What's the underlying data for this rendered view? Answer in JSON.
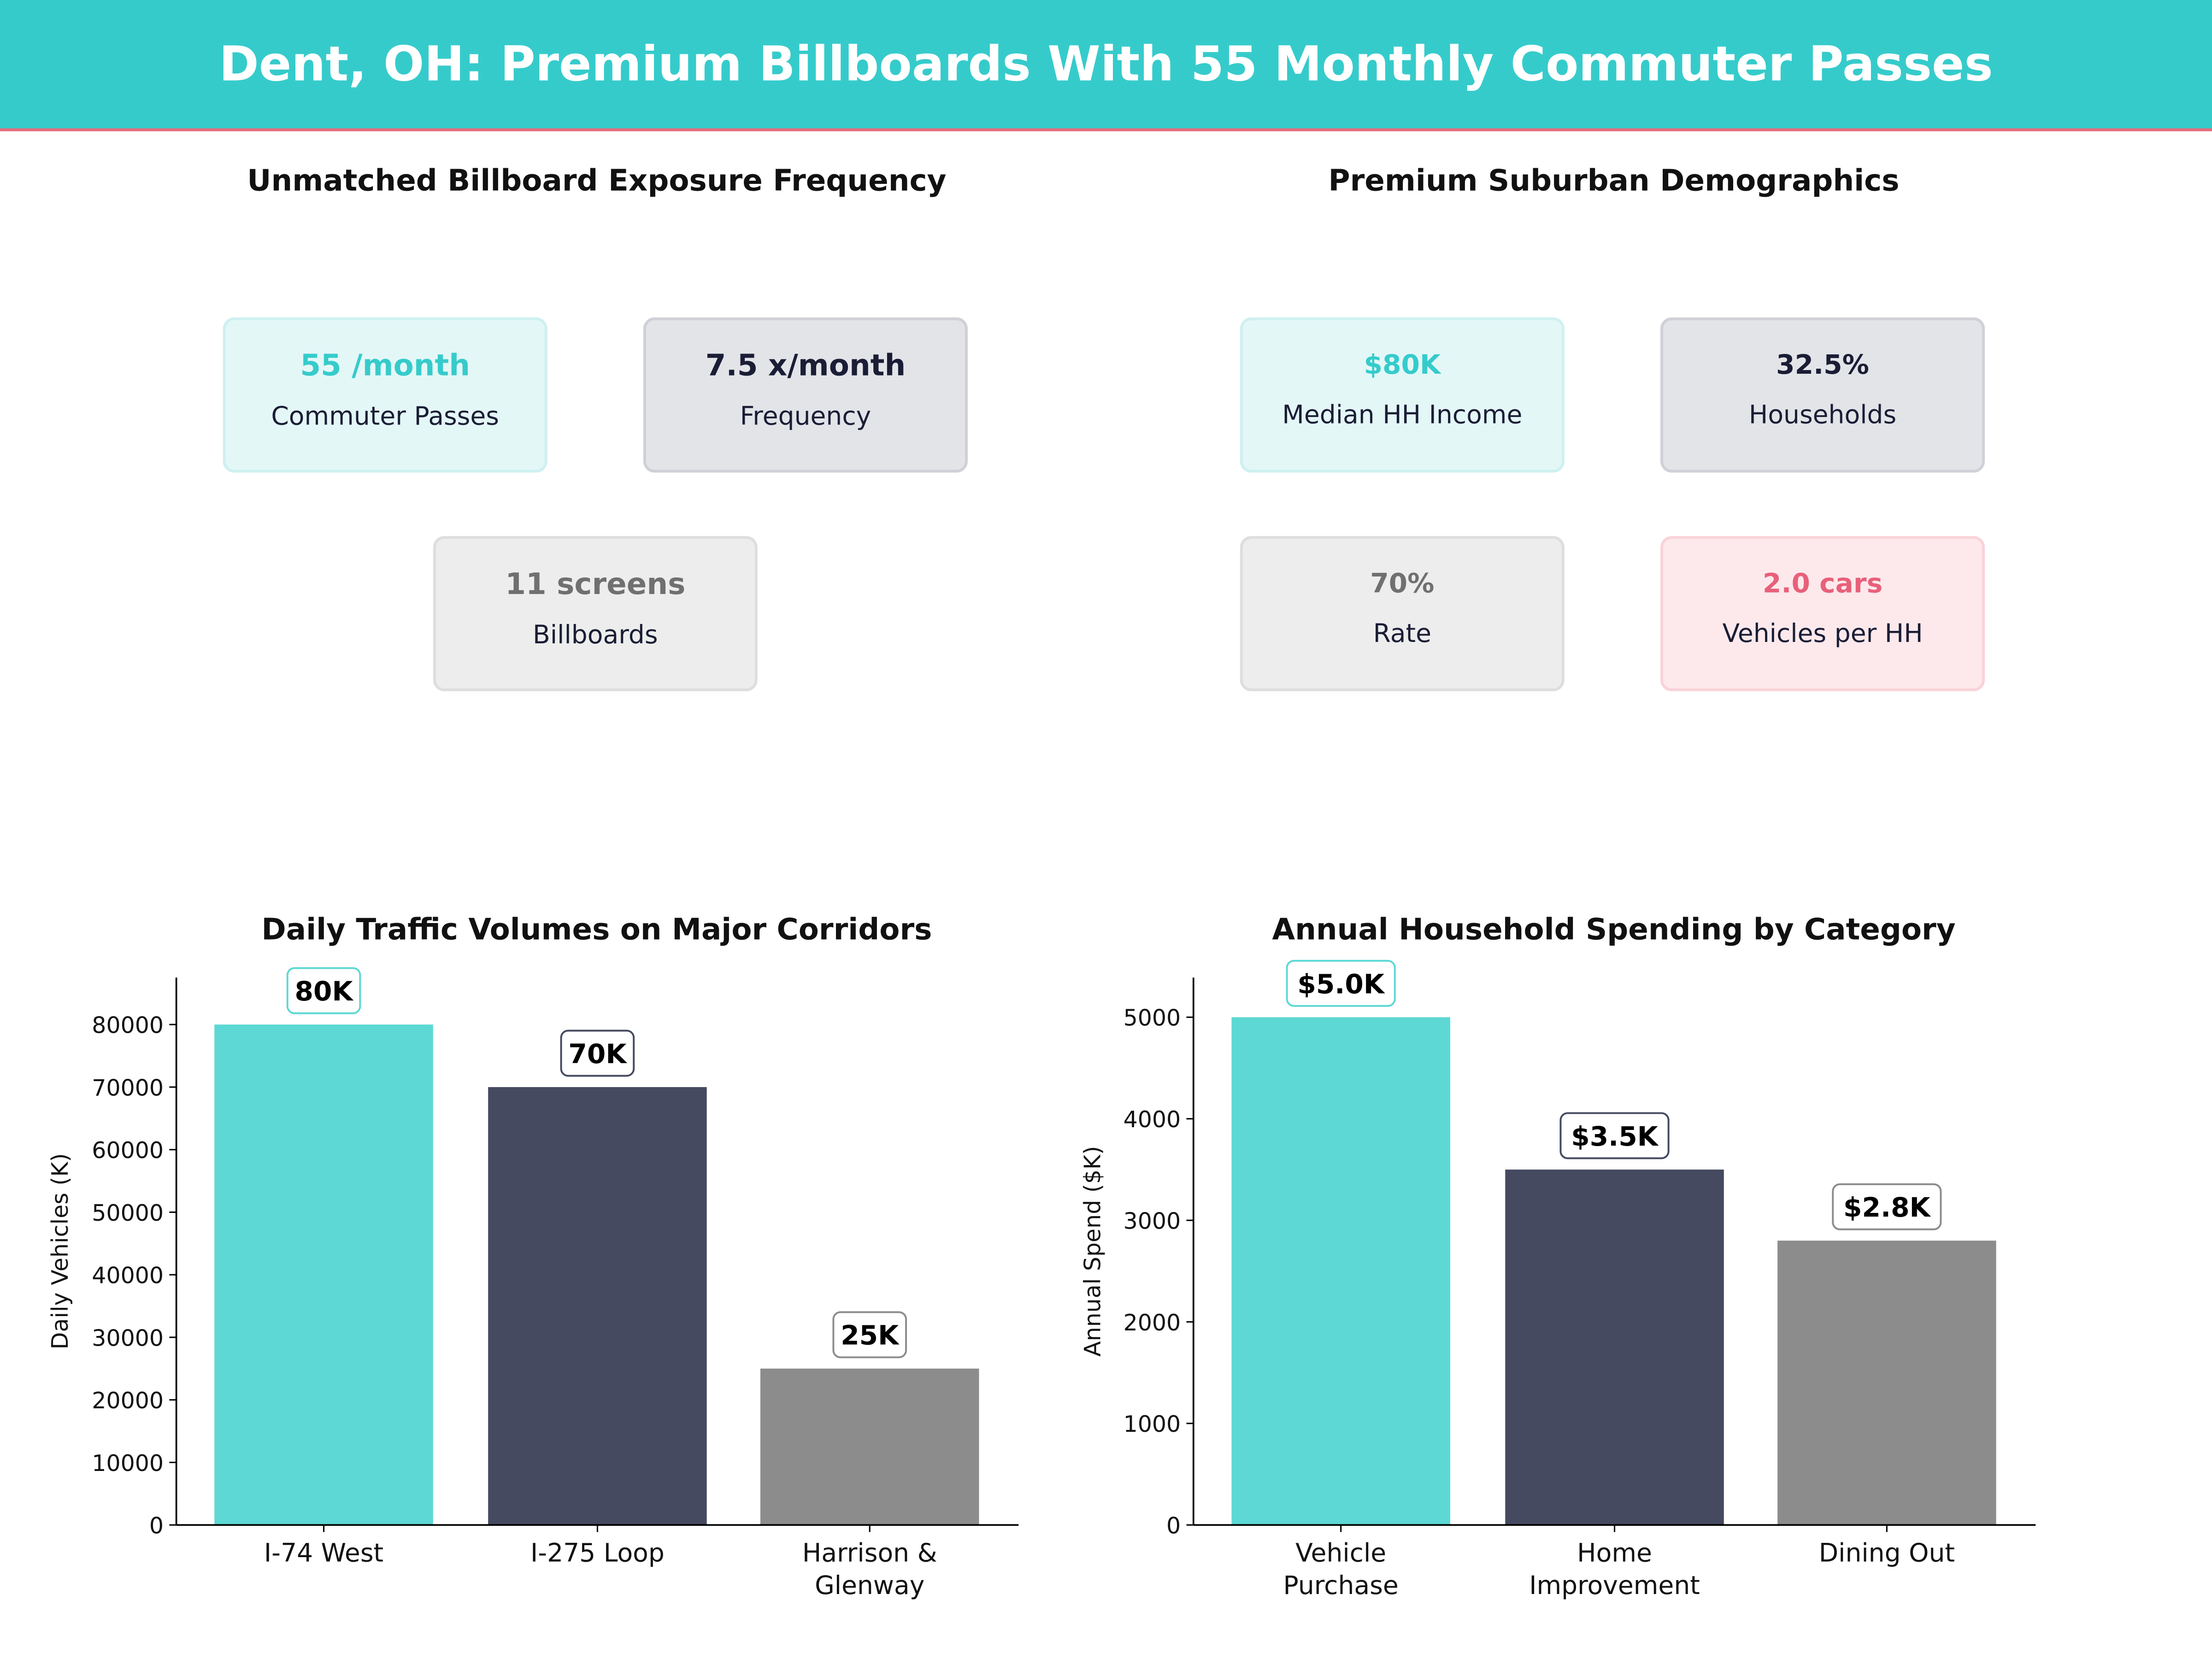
{
  "header": {
    "title": "Dent, OH: Premium Billboards With 55 Monthly Commuter Passes"
  },
  "exposure": {
    "title": "Unmatched Billboard Exposure Frequency",
    "cards": [
      {
        "value": "55 /month",
        "label": "Commuter Passes",
        "theme": "teal"
      },
      {
        "value": "7.5 x/month",
        "label": "Frequency",
        "theme": "dark"
      },
      {
        "value": "11 screens",
        "label": "Billboards",
        "theme": "gray"
      }
    ]
  },
  "demographics": {
    "title": "Premium Suburban Demographics",
    "cards": [
      {
        "value": "$80K",
        "label": "Median HH Income",
        "theme": "teal"
      },
      {
        "value": "32.5%",
        "label": "Households",
        "theme": "dark"
      },
      {
        "value": "70%",
        "label": "Rate",
        "theme": "gray"
      },
      {
        "value": "2.0 cars",
        "label": "Vehicles per HH",
        "theme": "pink"
      }
    ]
  },
  "colors": {
    "teal": "#5DD8D4",
    "navy": "#454A60",
    "gray": "#8C8C8C",
    "header": "#36CBCB",
    "accent": "#E8687A"
  },
  "chart_data": [
    {
      "type": "bar",
      "title": "Daily Traffic Volumes on Major Corridors",
      "xlabel": "",
      "ylabel": "Daily Vehicles (K)",
      "categories": [
        "I-74 West",
        "I-275 Loop",
        "Harrison & Glenway"
      ],
      "values": [
        80000,
        70000,
        25000
      ],
      "data_labels": [
        "80K",
        "70K",
        "25K"
      ],
      "yticks": [
        0,
        10000,
        20000,
        30000,
        40000,
        50000,
        60000,
        70000,
        80000
      ],
      "ylim": [
        0,
        87500
      ],
      "grid": false
    },
    {
      "type": "bar",
      "title": "Annual Household Spending by Category",
      "xlabel": "",
      "ylabel": "Annual Spend ($K)",
      "categories": [
        "Vehicle Purchase",
        "Home Improvement",
        "Dining Out"
      ],
      "values": [
        5000,
        3500,
        2800
      ],
      "data_labels": [
        "$5.0K",
        "$3.5K",
        "$2.8K"
      ],
      "yticks": [
        0,
        1000,
        2000,
        3000,
        4000,
        5000
      ],
      "ylim": [
        0,
        5390
      ],
      "grid": false
    }
  ]
}
